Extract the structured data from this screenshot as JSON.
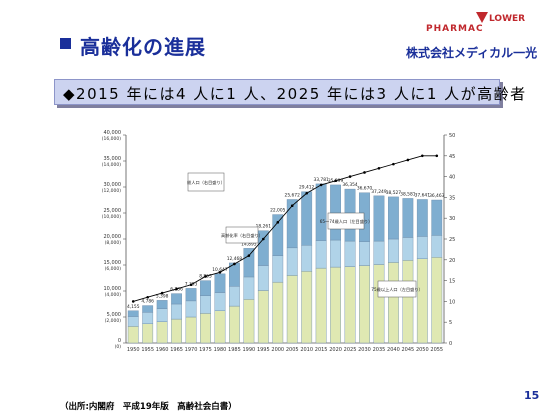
{
  "slide": {
    "title": "高齢化の進展",
    "banner": "◆2015 年には4 人に1 人、2025 年には3 人に1 人が高齢者",
    "source": "（出所:内閣府　平成19年版　高齢社会白書）",
    "page_number": "15"
  },
  "logo": {
    "pharmac": "PHARMAC",
    "flower": "LOWER",
    "company": "株式会社メディカル一光"
  },
  "colors": {
    "title_blue": "#1a2f9a",
    "banner_bg": "#ccd3f0",
    "under65": "#dfe8b2",
    "age65_74": "#b0d3e8",
    "age75plus": "#7faed0",
    "line": "#000000"
  },
  "chart_data": {
    "type": "bar",
    "title": "",
    "xlabel": "",
    "y_axis_left": {
      "ticks": [
        "0",
        "5,000",
        "10,000",
        "15,000",
        "20,000",
        "25,000",
        "30,000",
        "35,000",
        "40,000"
      ],
      "ticks_paren": [
        "(0)",
        "(2,000)",
        "(4,000)",
        "(6,000)",
        "(8,000)",
        "(10,000)",
        "(12,000)",
        "(14,000)",
        "(16,000)"
      ],
      "range": [
        0,
        40000
      ]
    },
    "y_axis_right": {
      "ticks": [
        "0",
        "5",
        "10",
        "15",
        "20",
        "25",
        "30",
        "35",
        "40",
        "45",
        "50"
      ],
      "range": [
        0,
        50
      ]
    },
    "categories": [
      "1950",
      "1955",
      "1960",
      "1965",
      "1970",
      "1975",
      "1980",
      "1985",
      "1990",
      "1995",
      "2000",
      "2005",
      "2010",
      "2015",
      "2020",
      "2025",
      "2030",
      "2035",
      "2040",
      "2045",
      "2050",
      "2055"
    ],
    "series": [
      {
        "values": [
          3200,
          3700,
          4100,
          4600,
          5000,
          5700,
          6200,
          7100,
          8400,
          10100,
          11700,
          13000,
          13800,
          14400,
          14600,
          14700,
          14900,
          15100,
          15500,
          15900,
          16200,
          16500
        ]
      },
      {
        "values": [
          1900,
          2200,
          2500,
          2900,
          3100,
          3400,
          3500,
          3800,
          4300,
          4800,
          5100,
          5300,
          5000,
          5300,
          5200,
          4900,
          4600,
          4500,
          4500,
          4400,
          4300,
          4200
        ]
      },
      {
        "values": [
          1100,
          1300,
          1600,
          2000,
          2400,
          2900,
          3600,
          4500,
          5500,
          6700,
          7900,
          9300,
          10300,
          10900,
          10600,
          10000,
          9400,
          8700,
          8100,
          7500,
          7100,
          6800
        ]
      }
    ],
    "line_series": {
      "values": [
        1.0,
        1.1,
        1.2,
        1.3,
        1.4,
        1.6,
        1.7,
        1.9,
        2.1,
        2.5,
        2.9,
        3.3,
        3.6,
        3.8,
        3.9,
        4.0,
        4.1,
        4.2,
        4.3,
        4.4,
        4.5,
        4.5
      ]
    },
    "data_labels": [
      "4,155",
      "4,786",
      "5,398",
      "6,236",
      "7,393",
      "8,865",
      "10,647",
      "12,468",
      "14,895",
      "18,261",
      "22,005",
      "25,672",
      "29,412",
      "33,781",
      "35,899",
      "36,354",
      "36,670",
      "37,249",
      "38,527",
      "38,581",
      "37,641",
      "36,463"
    ],
    "annotations": [
      "総人口（右目盛り）",
      "高齢化率（右目盛り）",
      "65〜74歳人口（左目盛り）",
      "75歳以上人口（左目盛り）"
    ],
    "grid": false,
    "legend": "none"
  }
}
